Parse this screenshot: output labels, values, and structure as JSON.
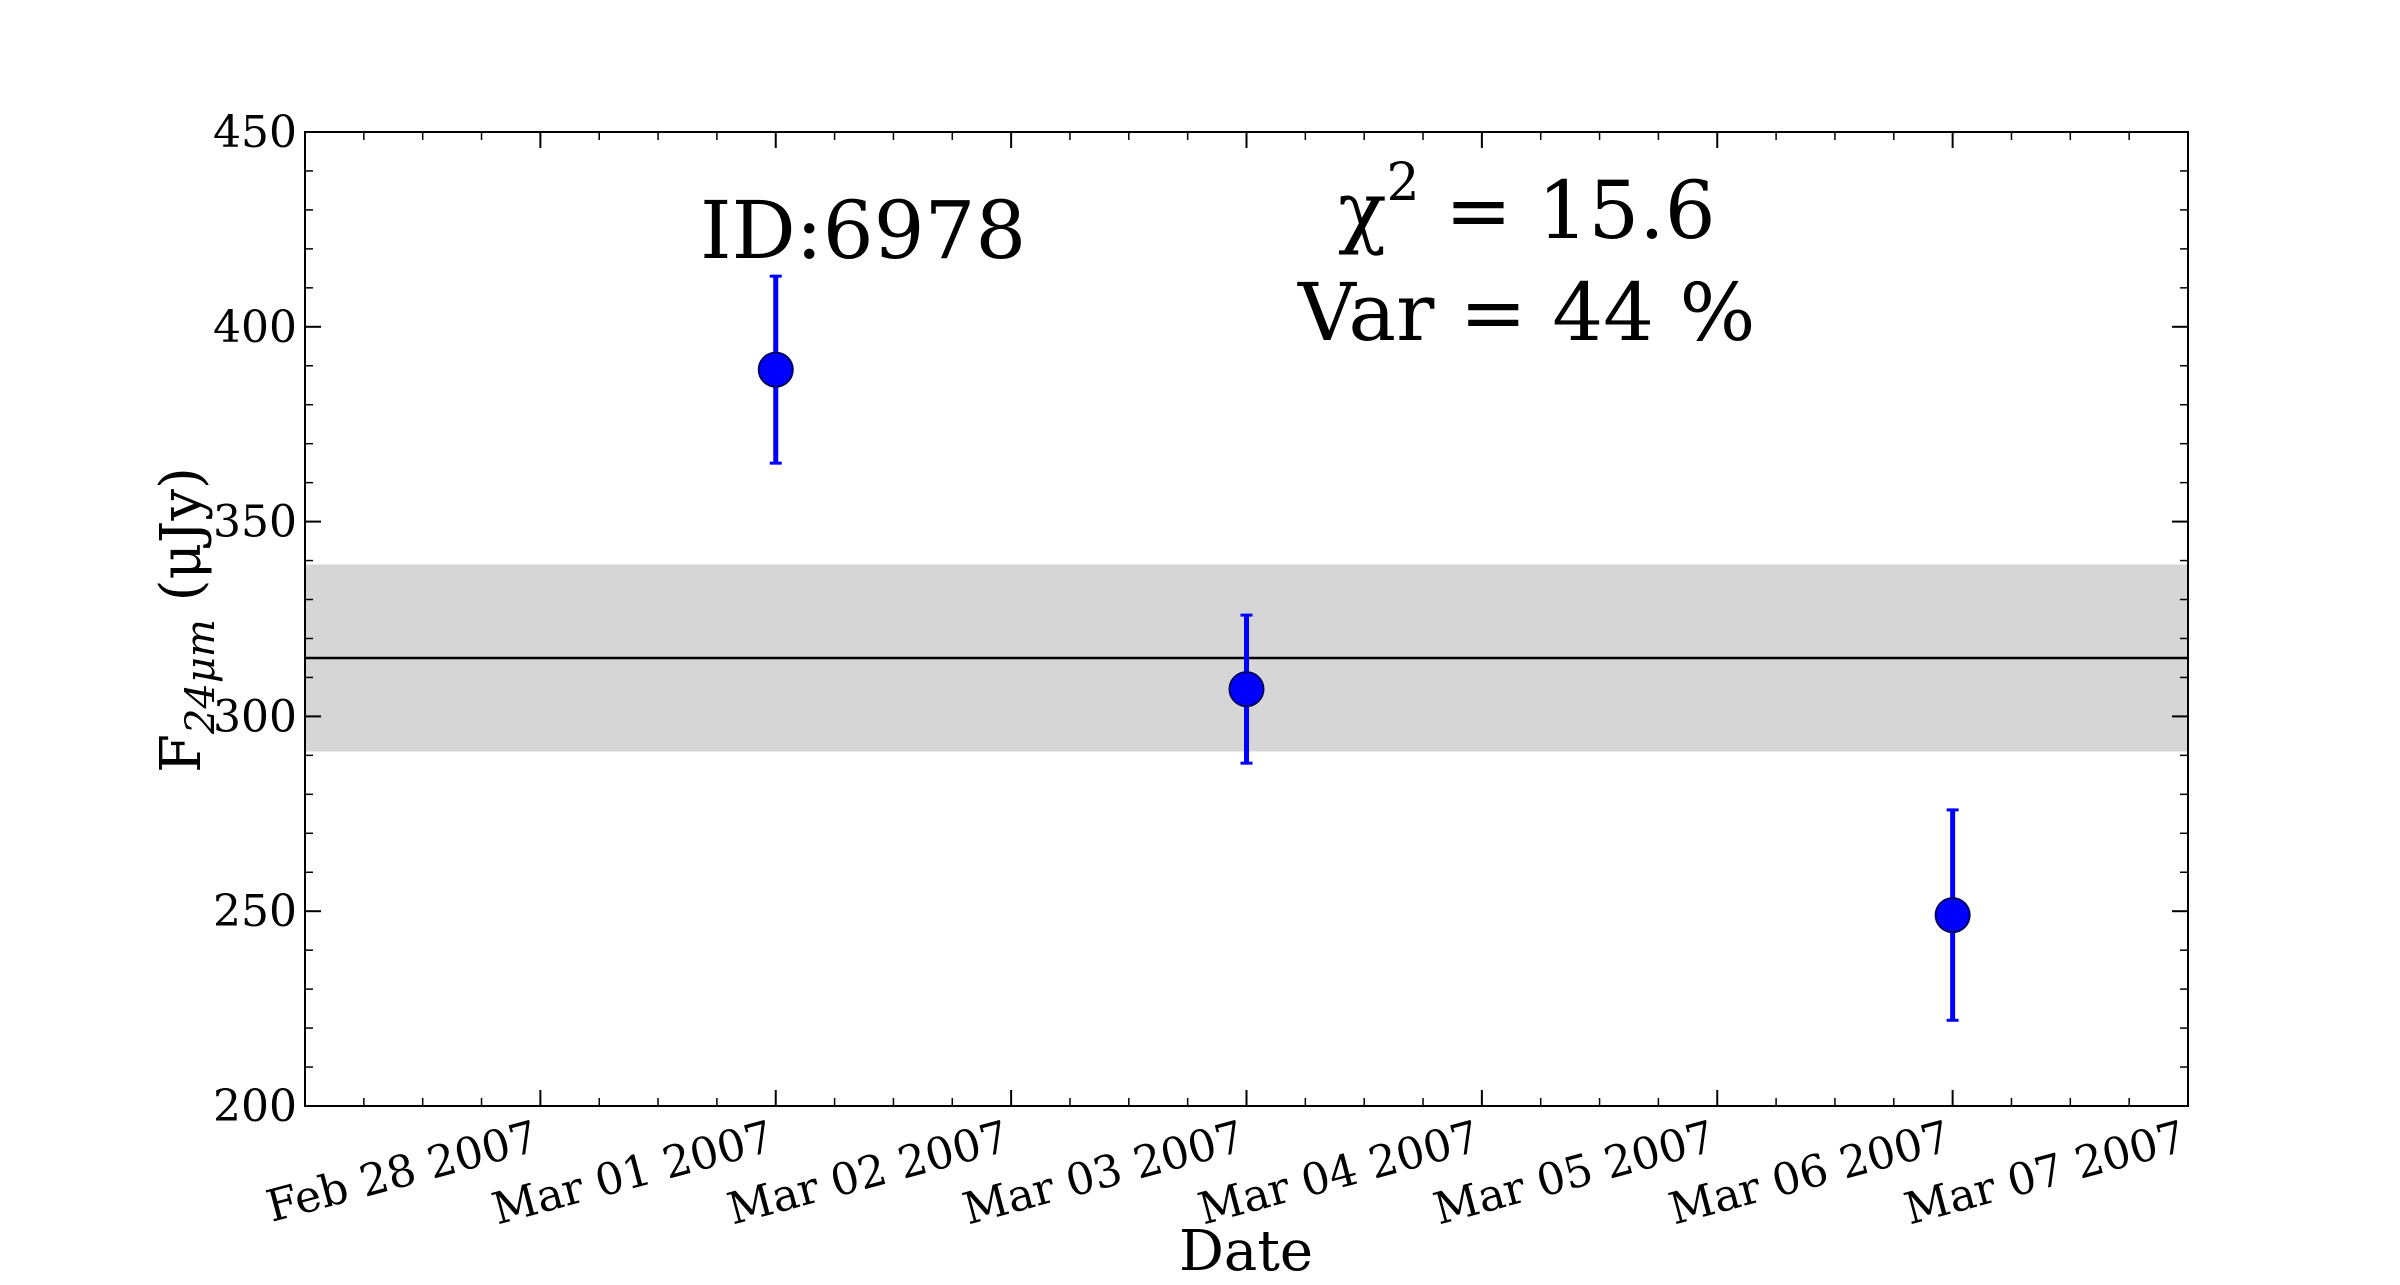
{
  "chart_data": {
    "type": "scatter",
    "title": "",
    "xlabel": "Date",
    "ylabel": "F_{24μm} (μJy)",
    "ylabel_parts": {
      "main": "F",
      "sub": "24μm",
      "rest": " (μJy)"
    },
    "xlim": [
      "2007-02-27T00:00",
      "2007-03-07T00:00"
    ],
    "ylim": [
      200,
      450
    ],
    "x_ticks": [
      {
        "date": "2007-02-28",
        "label": "Feb 28 2007"
      },
      {
        "date": "2007-03-01",
        "label": "Mar 01 2007"
      },
      {
        "date": "2007-03-02",
        "label": "Mar 02 2007"
      },
      {
        "date": "2007-03-03",
        "label": "Mar 03 2007"
      },
      {
        "date": "2007-03-04",
        "label": "Mar 04 2007"
      },
      {
        "date": "2007-03-05",
        "label": "Mar 05 2007"
      },
      {
        "date": "2007-03-06",
        "label": "Mar 06 2007"
      },
      {
        "date": "2007-03-07",
        "label": "Mar 07 2007"
      }
    ],
    "y_ticks": [
      200,
      250,
      300,
      350,
      400,
      450
    ],
    "series": [
      {
        "color": "#0000ff",
        "points": [
          {
            "x": "2007-03-01T00:00",
            "y": 389,
            "yerr_low": 365,
            "yerr_high": 413
          },
          {
            "x": "2007-03-03T00:00",
            "y": 307,
            "yerr_low": 288,
            "yerr_high": 326
          },
          {
            "x": "2007-03-06T00:00",
            "y": 249,
            "yerr_low": 222,
            "yerr_high": 276
          }
        ]
      }
    ],
    "mean_line": {
      "value": 315,
      "color": "#000000"
    },
    "band": {
      "low": 291,
      "high": 339,
      "color": "#d6d6d6"
    },
    "annotations": {
      "id_text": "ID:6978",
      "chi_symbol": "χ",
      "chi_exponent": "2",
      "chi_value": " = 15.6",
      "var_text": "Var = 44 %"
    },
    "grid": false,
    "legend": "none"
  }
}
